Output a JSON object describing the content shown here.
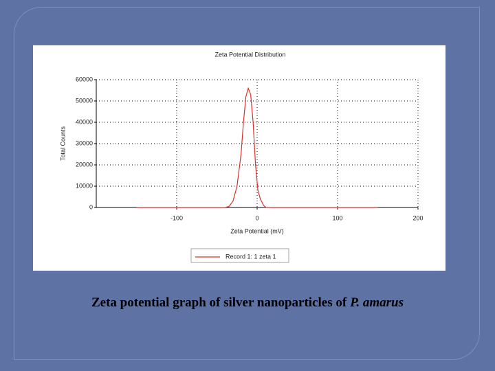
{
  "chart_data": {
    "type": "line",
    "title": "Zeta Potential Distribution",
    "x_label": "Zeta Potential (mV)",
    "y_label": "Total Counts",
    "x": [
      -150,
      -40,
      -35,
      -30,
      -25,
      -20,
      -17,
      -14,
      -11,
      -8,
      -5,
      -2,
      1,
      4,
      8,
      11,
      150
    ],
    "series": [
      {
        "name": "Record 1: 1 zeta 1",
        "color": "#d9302a",
        "values": [
          0,
          0,
          500,
          3000,
          10000,
          25000,
          40000,
          52000,
          56000,
          53000,
          40000,
          20000,
          8000,
          4000,
          1000,
          0,
          0
        ]
      }
    ],
    "xlim": [
      -200,
      200
    ],
    "xticks": [
      -100,
      0,
      100,
      200
    ],
    "ylim": [
      0,
      60000
    ],
    "yticks": [
      0,
      10000,
      20000,
      30000,
      40000,
      50000,
      60000
    ],
    "grid": true,
    "legend": "bottom"
  },
  "caption": {
    "text": "Zeta potential graph of silver nanoparticles of",
    "species": "P. amarus"
  }
}
